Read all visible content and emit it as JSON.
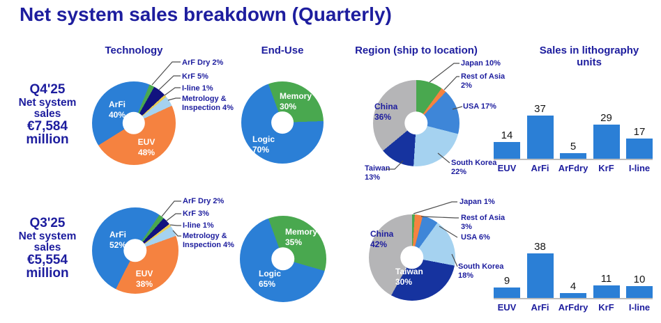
{
  "title": "Net system sales breakdown (Quarterly)",
  "colors": {
    "navy_text": "#1d1d9e",
    "blue": "#2b7fd6",
    "orange": "#f58240",
    "green": "#49a84f",
    "dark_navy": "#11127f",
    "taiwan_navy": "#16339f",
    "light_blue": "#a5d2f0",
    "usa_blue": "#3e86d8",
    "gray": "#b5b5b7",
    "yellow": "#e8cd52",
    "bar_blue": "#2b7fd6"
  },
  "headers": {
    "technology": "Technology",
    "end_use": "End-Use",
    "region": "Region (ship to location)",
    "units": "Sales in lithography units"
  },
  "rows": [
    {
      "quarter": "Q4'25",
      "sales_label": "Net system sales",
      "sales_value": "€7,584 million"
    },
    {
      "quarter": "Q3'25",
      "sales_label": "Net system sales",
      "sales_value": "€5,554 million"
    }
  ],
  "chart_data": [
    {
      "id": "q4_tech",
      "type": "pie",
      "quarter": "Q4'25",
      "title": "Technology",
      "donut": true,
      "rotation": 22,
      "slices": [
        {
          "label": "ArF Dry",
          "pct": 2,
          "color": "#49a84f"
        },
        {
          "label": "KrF",
          "pct": 5,
          "color": "#11127f"
        },
        {
          "label": "I-line",
          "pct": 1,
          "color": "#e8cd52"
        },
        {
          "label": "Metrology & Inspection",
          "pct": 4,
          "color": "#a5d2f0"
        },
        {
          "label": "EUV",
          "pct": 48,
          "color": "#f58240"
        },
        {
          "label": "ArFi",
          "pct": 40,
          "color": "#2b7fd6"
        }
      ],
      "inside_labels": [
        {
          "text": "ArFi\n40%"
        },
        {
          "text": "EUV\n48%"
        }
      ],
      "callouts": [
        {
          "text": "ArF Dry 2%"
        },
        {
          "text": "KrF 5%"
        },
        {
          "text": "I-line 1%"
        },
        {
          "text": "Metrology &\nInspection 4%"
        }
      ]
    },
    {
      "id": "q4_enduse",
      "type": "pie",
      "quarter": "Q4'25",
      "title": "End-Use",
      "donut": true,
      "rotation": -20,
      "slices": [
        {
          "label": "Memory",
          "pct": 30,
          "color": "#49a84f"
        },
        {
          "label": "Logic",
          "pct": 70,
          "color": "#2b7fd6"
        }
      ],
      "inside_labels": [
        {
          "text": "Memory\n30%"
        },
        {
          "text": "Logic\n70%"
        }
      ],
      "callouts": []
    },
    {
      "id": "q4_region",
      "type": "pie",
      "quarter": "Q4'25",
      "title": "Region (ship to location)",
      "donut": true,
      "rotation": 0,
      "slices": [
        {
          "label": "Japan",
          "pct": 10,
          "color": "#49a84f"
        },
        {
          "label": "Rest of Asia",
          "pct": 2,
          "color": "#f58240"
        },
        {
          "label": "USA",
          "pct": 17,
          "color": "#3e86d8"
        },
        {
          "label": "South Korea",
          "pct": 22,
          "color": "#a5d2f0"
        },
        {
          "label": "Taiwan",
          "pct": 13,
          "color": "#16339f"
        },
        {
          "label": "China",
          "pct": 36,
          "color": "#b5b5b7"
        }
      ],
      "inside_labels": [
        {
          "text": "China\n36%"
        }
      ],
      "callouts": [
        {
          "text": "Japan 10%"
        },
        {
          "text": "Rest of Asia\n2%"
        },
        {
          "text": "USA 17%"
        },
        {
          "text": "South Korea\n22%"
        },
        {
          "text": "Taiwan\n13%"
        }
      ]
    },
    {
      "id": "q4_units",
      "type": "bar",
      "quarter": "Q4'25",
      "title": "Sales in lithography units",
      "categories": [
        "EUV",
        "ArFi",
        "ArFdry",
        "KrF",
        "I-line"
      ],
      "values": [
        14,
        37,
        5,
        29,
        17
      ],
      "bar_color": "#2b7fd6"
    },
    {
      "id": "q3_tech",
      "type": "pie",
      "quarter": "Q3'25",
      "title": "Technology",
      "donut": true,
      "rotation": 34,
      "slices": [
        {
          "label": "ArF Dry",
          "pct": 2,
          "color": "#49a84f"
        },
        {
          "label": "KrF",
          "pct": 3,
          "color": "#11127f"
        },
        {
          "label": "I-line",
          "pct": 1,
          "color": "#e8cd52"
        },
        {
          "label": "Metrology & Inspection",
          "pct": 4,
          "color": "#a5d2f0"
        },
        {
          "label": "EUV",
          "pct": 38,
          "color": "#f58240"
        },
        {
          "label": "ArFi",
          "pct": 52,
          "color": "#2b7fd6"
        }
      ],
      "inside_labels": [
        {
          "text": "ArFi\n52%"
        },
        {
          "text": "EUV\n38%"
        }
      ],
      "callouts": [
        {
          "text": "ArF Dry 2%"
        },
        {
          "text": "KrF 3%"
        },
        {
          "text": "I-line 1%"
        },
        {
          "text": "Metrology &\nInspection 4%"
        }
      ]
    },
    {
      "id": "q3_enduse",
      "type": "pie",
      "quarter": "Q3'25",
      "title": "End-Use",
      "donut": true,
      "rotation": -20,
      "slices": [
        {
          "label": "Memory",
          "pct": 35,
          "color": "#49a84f"
        },
        {
          "label": "Logic",
          "pct": 65,
          "color": "#2b7fd6"
        }
      ],
      "inside_labels": [
        {
          "text": "Memory\n35%"
        },
        {
          "text": "Logic\n65%"
        }
      ],
      "callouts": []
    },
    {
      "id": "q3_region",
      "type": "pie",
      "quarter": "Q3'25",
      "title": "Region (ship to location)",
      "donut": true,
      "rotation": 0,
      "slices": [
        {
          "label": "Japan",
          "pct": 1,
          "color": "#49a84f"
        },
        {
          "label": "Rest of Asia",
          "pct": 3,
          "color": "#f58240"
        },
        {
          "label": "USA",
          "pct": 6,
          "color": "#3e86d8"
        },
        {
          "label": "South Korea",
          "pct": 18,
          "color": "#a5d2f0"
        },
        {
          "label": "Taiwan",
          "pct": 30,
          "color": "#16339f"
        },
        {
          "label": "China",
          "pct": 42,
          "color": "#b5b5b7"
        }
      ],
      "inside_labels": [
        {
          "text": "China\n42%"
        },
        {
          "text": "Taiwan\n30%"
        }
      ],
      "callouts": [
        {
          "text": "Japan 1%"
        },
        {
          "text": "Rest of Asia\n3%"
        },
        {
          "text": "USA 6%"
        },
        {
          "text": "South Korea\n18%"
        }
      ]
    },
    {
      "id": "q3_units",
      "type": "bar",
      "quarter": "Q3'25",
      "title": "Sales in lithography units",
      "categories": [
        "EUV",
        "ArFi",
        "ArFdry",
        "KrF",
        "I-line"
      ],
      "values": [
        9,
        38,
        4,
        11,
        10
      ],
      "bar_color": "#2b7fd6"
    }
  ]
}
